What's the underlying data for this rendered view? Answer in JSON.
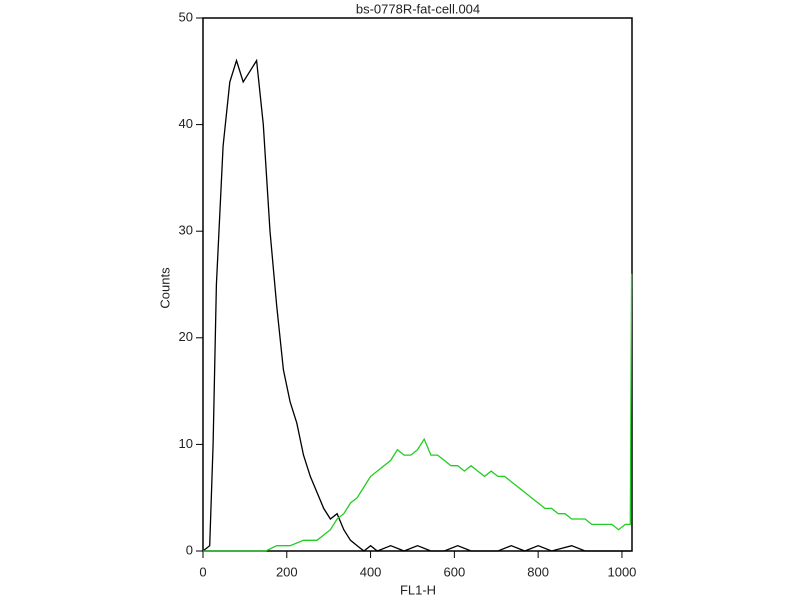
{
  "chart_data": {
    "type": "line",
    "title": "bs-0778R-fat-cell.004",
    "x_label": "FL1-H",
    "y_label": "Counts",
    "xlim": [
      0,
      1024
    ],
    "ylim": [
      0,
      50
    ],
    "xticks": [
      0,
      200,
      400,
      600,
      800,
      1000
    ],
    "yticks": [
      0,
      10,
      20,
      30,
      40,
      50
    ],
    "series": [
      {
        "color": "#000000",
        "x": [
          0,
          16,
          24,
          32,
          48,
          64,
          80,
          96,
          112,
          128,
          144,
          160,
          176,
          192,
          208,
          224,
          240,
          256,
          272,
          288,
          304,
          320,
          336,
          352,
          368,
          384,
          400,
          416,
          448,
          480,
          512,
          544,
          576,
          608,
          640,
          704,
          736,
          768,
          800,
          832,
          880,
          912,
          960,
          1000,
          1020
        ],
        "values": [
          0,
          0.5,
          10,
          25,
          38,
          44,
          46,
          44,
          45,
          46,
          40,
          30,
          23,
          17,
          14,
          12,
          9,
          7,
          5.5,
          4,
          3,
          3.5,
          2,
          1,
          0.5,
          0,
          0.5,
          0,
          0.5,
          0,
          0.5,
          0,
          0,
          0.5,
          0,
          0,
          0.5,
          0,
          0.5,
          0,
          0.5,
          0,
          0,
          0,
          0
        ]
      },
      {
        "color": "#22cc22",
        "x": [
          0,
          150,
          176,
          208,
          240,
          272,
          288,
          304,
          320,
          336,
          352,
          368,
          384,
          400,
          416,
          432,
          448,
          464,
          480,
          496,
          512,
          528,
          544,
          560,
          576,
          592,
          608,
          624,
          640,
          656,
          672,
          688,
          704,
          720,
          736,
          752,
          768,
          784,
          800,
          816,
          832,
          848,
          864,
          880,
          896,
          912,
          928,
          944,
          960,
          976,
          992,
          1008,
          1020,
          1023
        ],
        "values": [
          0,
          0,
          0.5,
          0.5,
          1,
          1,
          1.5,
          2,
          3,
          3.5,
          4.5,
          5,
          6,
          7,
          7.5,
          8,
          8.5,
          9.5,
          9,
          9,
          9.5,
          10.5,
          9,
          9,
          8.5,
          8,
          8,
          7.5,
          8,
          7.5,
          7,
          7.5,
          7,
          7,
          6.5,
          6,
          5.5,
          5,
          4.5,
          4,
          4,
          3.5,
          3.5,
          3,
          3,
          3,
          2.5,
          2.5,
          2.5,
          2.5,
          2,
          2.5,
          2.5,
          26
        ]
      }
    ]
  }
}
